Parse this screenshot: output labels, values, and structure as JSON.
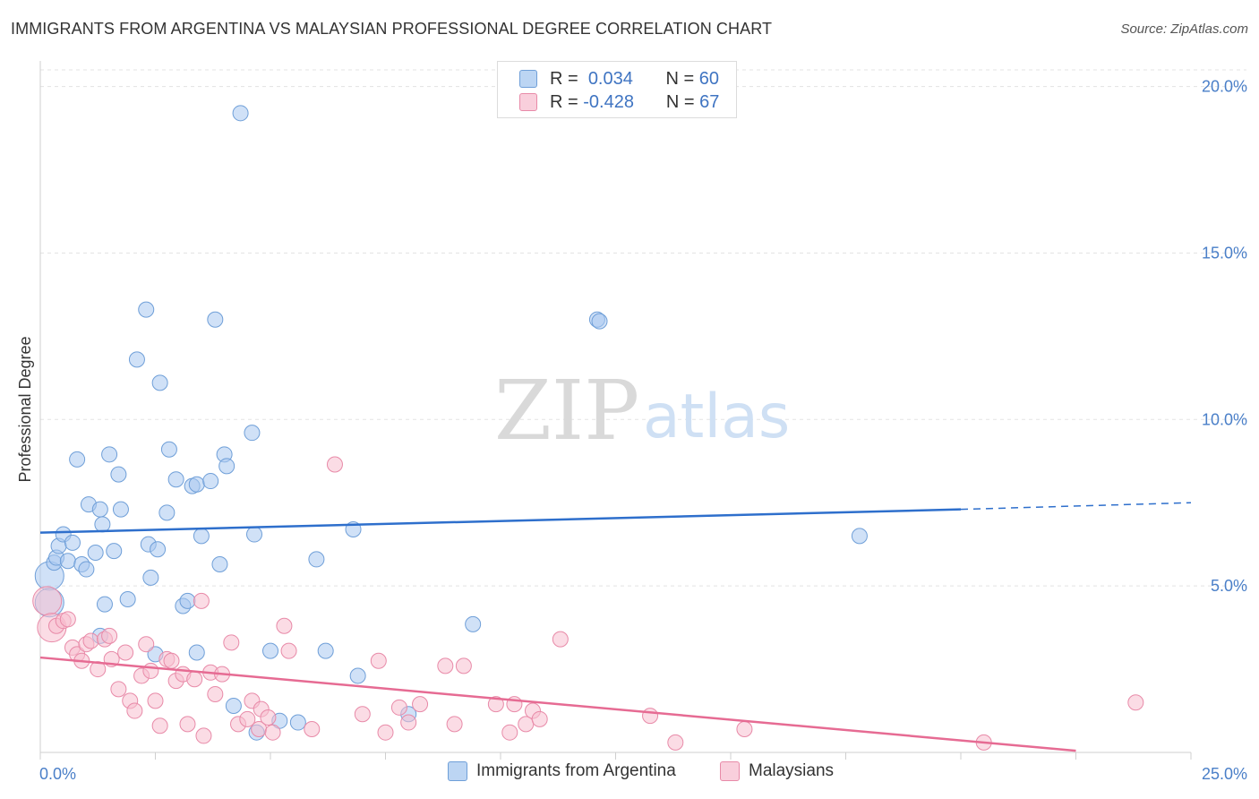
{
  "title": "IMMIGRANTS FROM ARGENTINA VS MALAYSIAN PROFESSIONAL DEGREE CORRELATION CHART",
  "source": "Source: ZipAtlas.com",
  "watermark": {
    "zip": "ZIP",
    "atlas": "atlas"
  },
  "legend": {
    "rows": [
      {
        "r_label": "R =",
        "r_value": "0.034",
        "n_label": "N =",
        "n_value": "60",
        "color": "#a9c8f0",
        "border": "#6f9fd8"
      },
      {
        "r_label": "R =",
        "r_value": "-0.428",
        "n_label": "N =",
        "n_value": "67",
        "color": "#f7bfd0",
        "border": "#e88aa8"
      }
    ]
  },
  "bottom_legend": [
    {
      "label": "Immigrants from Argentina",
      "color": "#bcd5f3",
      "border": "#6f9fd8"
    },
    {
      "label": "Malaysians",
      "color": "#f9cfdc",
      "border": "#e88aa8"
    }
  ],
  "chart_data": {
    "type": "scatter",
    "title": "IMMIGRANTS FROM ARGENTINA VS MALAYSIAN PROFESSIONAL DEGREE CORRELATION CHART",
    "xlabel": "",
    "ylabel": "Professional Degree",
    "xlim": [
      0,
      25
    ],
    "ylim": [
      0,
      20.5
    ],
    "x_tick_labels": [
      "0.0%",
      "25.0%"
    ],
    "y_ticks": [
      5,
      10,
      15,
      20
    ],
    "y_tick_labels": [
      "5.0%",
      "10.0%",
      "15.0%",
      "20.0%"
    ],
    "grid": true,
    "series": [
      {
        "name": "Immigrants from Argentina",
        "color": "#a9c8f0",
        "stroke": "#6f9fd8",
        "line_color": "#2e6fcc",
        "trend": {
          "x0": 0,
          "y0": 6.6,
          "x1": 20,
          "y1": 7.3,
          "dash_to": 25,
          "dash_y": 7.5
        },
        "points": [
          [
            0.2,
            5.3
          ],
          [
            0.2,
            4.5
          ],
          [
            0.3,
            5.7
          ],
          [
            0.35,
            5.85
          ],
          [
            0.4,
            6.2
          ],
          [
            0.5,
            6.55
          ],
          [
            0.6,
            5.75
          ],
          [
            0.7,
            6.3
          ],
          [
            0.8,
            8.8
          ],
          [
            0.9,
            5.65
          ],
          [
            1.0,
            5.5
          ],
          [
            1.05,
            7.45
          ],
          [
            1.2,
            6.0
          ],
          [
            1.3,
            7.3
          ],
          [
            1.35,
            6.85
          ],
          [
            1.5,
            8.95
          ],
          [
            1.6,
            6.05
          ],
          [
            1.7,
            8.35
          ],
          [
            1.75,
            7.3
          ],
          [
            1.9,
            4.6
          ],
          [
            1.4,
            4.45
          ],
          [
            2.1,
            11.8
          ],
          [
            2.3,
            13.3
          ],
          [
            2.35,
            6.25
          ],
          [
            2.4,
            5.25
          ],
          [
            2.55,
            6.1
          ],
          [
            2.6,
            11.1
          ],
          [
            2.75,
            7.2
          ],
          [
            2.8,
            9.1
          ],
          [
            2.95,
            8.2
          ],
          [
            3.1,
            4.4
          ],
          [
            3.2,
            4.55
          ],
          [
            3.3,
            8.0
          ],
          [
            3.4,
            8.05
          ],
          [
            3.5,
            6.5
          ],
          [
            3.7,
            8.15
          ],
          [
            3.8,
            13.0
          ],
          [
            3.9,
            5.65
          ],
          [
            4.0,
            8.95
          ],
          [
            4.05,
            8.6
          ],
          [
            4.35,
            19.2
          ],
          [
            4.6,
            9.6
          ],
          [
            4.65,
            6.55
          ],
          [
            4.2,
            1.4
          ],
          [
            5.0,
            3.05
          ],
          [
            5.2,
            0.95
          ],
          [
            5.6,
            0.9
          ],
          [
            6.0,
            5.8
          ],
          [
            6.2,
            3.05
          ],
          [
            6.8,
            6.7
          ],
          [
            6.9,
            2.3
          ],
          [
            8.0,
            1.15
          ],
          [
            9.4,
            3.85
          ],
          [
            12.1,
            13.0
          ],
          [
            12.15,
            12.95
          ],
          [
            17.8,
            6.5
          ],
          [
            2.5,
            2.95
          ],
          [
            3.4,
            3.0
          ],
          [
            4.7,
            0.6
          ],
          [
            1.3,
            3.5
          ]
        ]
      },
      {
        "name": "Malaysians",
        "color": "#f7bfd0",
        "stroke": "#e88aa8",
        "line_color": "#e66b93",
        "trend": {
          "x0": 0,
          "y0": 2.85,
          "x1": 22.5,
          "y1": 0.05
        },
        "points": [
          [
            0.15,
            4.55
          ],
          [
            0.25,
            3.75
          ],
          [
            0.35,
            3.8
          ],
          [
            0.5,
            3.95
          ],
          [
            0.6,
            4.0
          ],
          [
            0.7,
            3.15
          ],
          [
            0.8,
            2.95
          ],
          [
            0.9,
            2.75
          ],
          [
            1.0,
            3.25
          ],
          [
            1.1,
            3.35
          ],
          [
            1.25,
            2.5
          ],
          [
            1.4,
            3.4
          ],
          [
            1.5,
            3.5
          ],
          [
            1.55,
            2.8
          ],
          [
            1.7,
            1.9
          ],
          [
            1.85,
            3.0
          ],
          [
            1.95,
            1.55
          ],
          [
            2.05,
            1.25
          ],
          [
            2.2,
            2.3
          ],
          [
            2.3,
            3.25
          ],
          [
            2.4,
            2.45
          ],
          [
            2.5,
            1.55
          ],
          [
            2.6,
            0.8
          ],
          [
            2.75,
            2.8
          ],
          [
            2.85,
            2.75
          ],
          [
            2.95,
            2.15
          ],
          [
            3.1,
            2.35
          ],
          [
            3.2,
            0.85
          ],
          [
            3.35,
            2.2
          ],
          [
            3.5,
            4.55
          ],
          [
            3.55,
            0.5
          ],
          [
            3.7,
            2.4
          ],
          [
            3.8,
            1.75
          ],
          [
            3.95,
            2.35
          ],
          [
            4.15,
            3.3
          ],
          [
            4.3,
            0.85
          ],
          [
            4.5,
            1.0
          ],
          [
            4.6,
            1.55
          ],
          [
            4.75,
            0.7
          ],
          [
            4.8,
            1.3
          ],
          [
            4.95,
            1.05
          ],
          [
            5.05,
            0.6
          ],
          [
            5.3,
            3.8
          ],
          [
            5.4,
            3.05
          ],
          [
            5.9,
            0.7
          ],
          [
            6.4,
            8.65
          ],
          [
            7.0,
            1.15
          ],
          [
            7.35,
            2.75
          ],
          [
            7.5,
            0.6
          ],
          [
            7.8,
            1.35
          ],
          [
            8.0,
            0.9
          ],
          [
            8.25,
            1.45
          ],
          [
            8.8,
            2.6
          ],
          [
            9.0,
            0.85
          ],
          [
            9.2,
            2.6
          ],
          [
            9.9,
            1.45
          ],
          [
            10.2,
            0.6
          ],
          [
            10.3,
            1.45
          ],
          [
            10.55,
            0.85
          ],
          [
            10.7,
            1.25
          ],
          [
            10.85,
            1.0
          ],
          [
            11.3,
            3.4
          ],
          [
            13.25,
            1.1
          ],
          [
            13.8,
            0.3
          ],
          [
            15.3,
            0.7
          ],
          [
            20.5,
            0.3
          ],
          [
            23.8,
            1.5
          ]
        ]
      }
    ]
  }
}
